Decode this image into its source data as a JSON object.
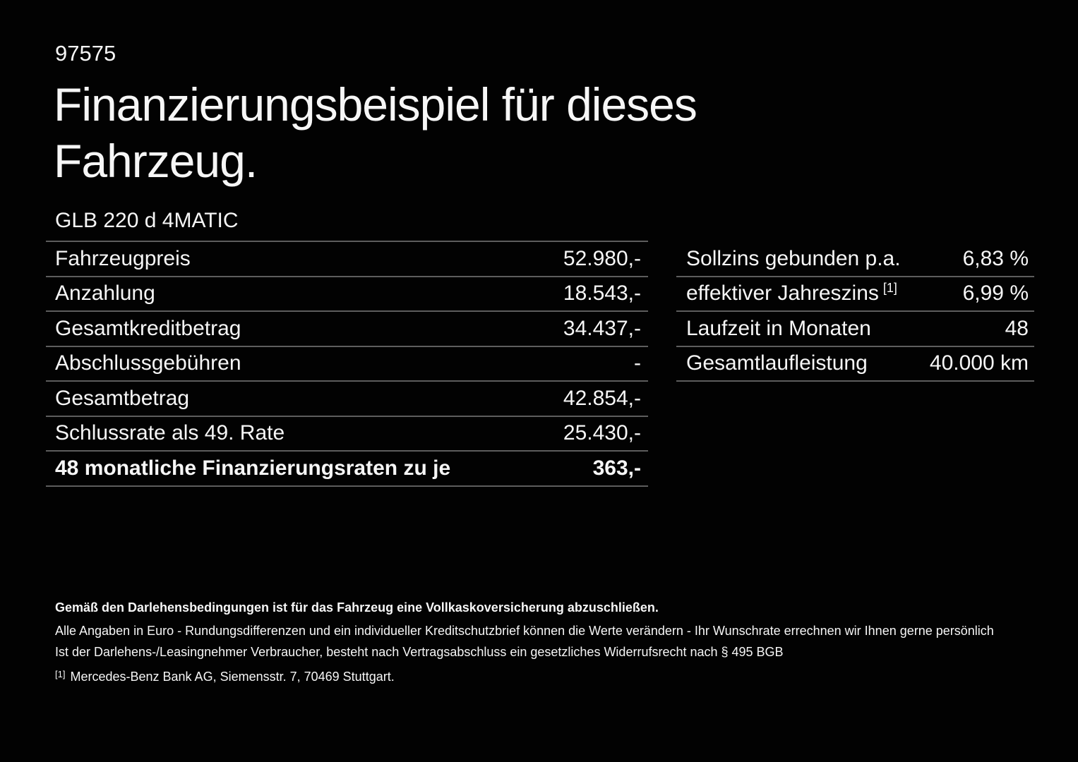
{
  "page": {
    "ref_number": "97575",
    "title": "Finanzierungsbeispiel für dieses Fahrzeug.",
    "model": "GLB 220 d 4MATIC"
  },
  "finance_table": {
    "rows": [
      {
        "label": "Fahrzeugpreis",
        "value": "52.980,-"
      },
      {
        "label": "Anzahlung",
        "value": "18.543,-"
      },
      {
        "label": "Gesamtkreditbetrag",
        "value": "34.437,-"
      },
      {
        "label": "Abschlussgebühren",
        "value": "-"
      },
      {
        "label": "Gesamtbetrag",
        "value": "42.854,-"
      },
      {
        "label": "Schlussrate als 49. Rate",
        "value": "25.430,-"
      },
      {
        "label": "48 monatliche Finanzierungsraten zu je",
        "value": "363,-"
      }
    ]
  },
  "conditions_table": {
    "rows": [
      {
        "label": "Sollzins gebunden p.a.",
        "value": "6,83 %"
      },
      {
        "label": "effektiver Jahreszins",
        "label_sup": "[1]",
        "value": "6,99 %"
      },
      {
        "label": "Laufzeit in Monaten",
        "value": "48"
      },
      {
        "label": "Gesamtlaufleistung",
        "value": "40.000 km"
      }
    ]
  },
  "footer": {
    "line1": "Gemäß den Darlehensbedingungen ist für das Fahrzeug eine Vollkaskoversicherung abzuschließen.",
    "line2": "Alle Angaben in Euro - Rundungsdifferenzen und ein individueller Kreditschutzbrief können die Werte verändern - Ihr Wunschrate errechnen wir Ihnen gerne persönlich",
    "line3": "Ist der Darlehens-/Leasingnehmer Verbraucher, besteht nach Vertragsabschluss ein gesetzliches Widerrufsrecht nach § 495 BGB",
    "footnote_marker": "[1]",
    "footnote_text": "Mercedes-Benz Bank AG, Siemensstr. 7, 70469 Stuttgart."
  },
  "colors": {
    "background": "#020202",
    "text": "#f6f6f6",
    "divider": "#5d5d5d"
  }
}
